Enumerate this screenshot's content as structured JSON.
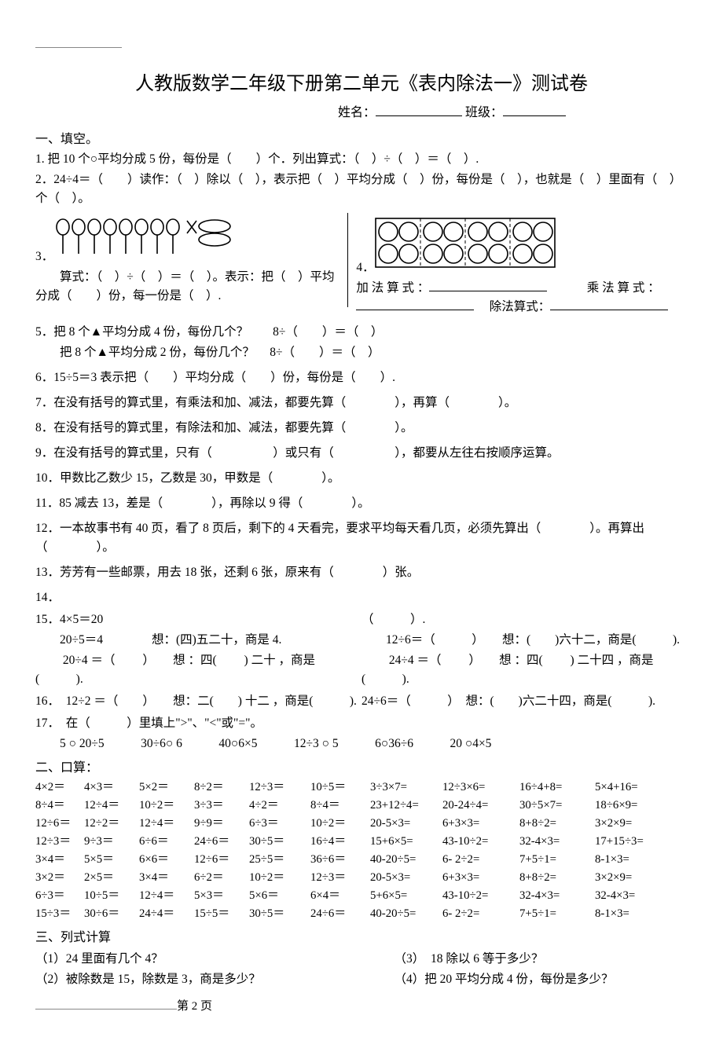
{
  "title": "人教版数学二年级下册第二单元《表内除法一》测试卷",
  "name_label": "姓名：",
  "class_label": "班级：",
  "section1": "一、填空。",
  "q1": "1. 把 10 个○平均分成 5 份，每份是（　　）个．列出算式：（　）÷（　）＝（　）.",
  "q2": "2．24÷4＝（　　）读作：（　）除以（　），表示把（　）平均分成（　）份，每份是（　），也就是（　）里面有（　）个（　）。",
  "q3_num": "3．",
  "q3_line": "　　算式：（　）÷（　）＝（　）。表示：把（　）平均分成（　　）份，每一份是（　）.",
  "q4_num": "4．",
  "q4_add": "加 法 算 式 ：",
  "q4_mul": "乘 法 算 式 ：",
  "q4_div": "除法算式：",
  "q5a": "5．把 8 个▲平均分成 4 份，每份几个？　　8÷（　　）＝（　）",
  "q5b": "　　把 8 个▲平均分成 2 份，每份几个？　 8÷（　　）＝（　）",
  "q6": "6．15÷5＝3 表示把（　　）平均分成（　　）份，每份是（　　）.",
  "q7": "7．在没有括号的算式里，有乘法和加、减法，都要先算（　　　　），再算（　　　　）。",
  "q8": "8．在没有括号的算式里，有除法和加、减法，都要先算（　　　　）。",
  "q9": "9．在没有括号的算式里，只有（　　　　　）或只有（　　　　　），都要从左往右按顺序运算。",
  "q10": "10．甲数比乙数少 15，乙数是 30，甲数是（　　　　）。",
  "q11": "11．85 减去 13，差是（　　　　），再除以 9 得（　　　　）。",
  "q12": "12．一本故事书有 40 页，看了 8 页后，剩下的 4 天看完，要求平均每天看几页，必须先算出（　　　　）。再算出（　　　　）。",
  "q13": "13．芳芳有一些邮票，用去 18 张，还剩 6 张，原来有（　　　　）张。",
  "q14": "14．",
  "q15a": "15．4×5＝20",
  "q15b": "　　20÷5＝4　　　　想：(四)五二十，商是 4.",
  "q15c": "　　 20÷4 ＝（ 　　）　　想 ：四(　　 ) 二十 ，商是(　　　).",
  "q15r1": "（　　　）.",
  "q15r2": "　　12÷6＝（　　　）　　想：(　　)六十二，商是(　　　).",
  "q15r3": "　　 24÷4 ＝（ 　　）　　想 ：四(　　 ) 二十四 ，商是(　　　).",
  "q16": "16．　12÷2 ＝（　　）　　想：二(　　) 十二 ，商是(　　　).",
  "q16r": "24÷6＝（　　　）　想：(　　)六二十四，商是(　　　).",
  "q17": "17．　在（　　　）里填上\">\"、\"<\"或\"=\"。",
  "q17line": "　　5 ○ 20÷5　　　30÷6○ 6　　　40○6×5　　　12÷3 ○ 5　　　6○36÷6　　　20 ○4×5",
  "section2": "二、口算：",
  "calc": [
    [
      "4×2＝",
      "4×3＝",
      "5×2＝",
      "8÷2＝",
      "12÷3＝",
      "10÷5＝",
      "3÷3×7=",
      "12÷3×6=",
      "16÷4+8=",
      "5×4+16="
    ],
    [
      "8÷4＝",
      "12÷4＝",
      "10÷2＝",
      "3÷3＝",
      "4÷2＝",
      "8÷4＝",
      "23+12÷4=",
      "20-24÷4=",
      "30÷5×7=",
      "18÷6×9="
    ],
    [
      "12÷6＝",
      "12÷2＝",
      "12÷4＝",
      "9÷9＝",
      "6÷3＝",
      "10÷2＝",
      "20-5×3=",
      "6+3×3=",
      "8+8÷2=",
      "3×2×9="
    ],
    [
      "12÷3＝",
      "9÷3＝",
      "6÷6＝",
      "24÷6＝",
      "30÷5＝",
      "16÷4＝",
      "15+6×5=",
      "43-10÷2=",
      "32-4×3=",
      "17+15÷3="
    ],
    [
      "3×4＝",
      "5×5＝",
      "6×6＝",
      "12÷6＝",
      "25÷5＝",
      "36÷6＝",
      "40-20÷5=",
      "6- 2÷2=",
      "7+5÷1=",
      "8-1×3="
    ],
    [
      "3×2＝",
      "2×5＝",
      "3×4＝",
      "6÷2＝",
      "10÷2＝",
      "12÷3＝",
      "20-5×3=",
      "6+3×3=",
      "8+8÷2=",
      "3×2×9="
    ],
    [
      "6÷3＝",
      "10÷5＝",
      "12÷4＝",
      "5×3＝",
      "5×6＝",
      "6×4＝",
      "5+6×5=",
      "43-10÷2=",
      "32-4×3=",
      "32-4×3="
    ],
    [
      "15÷3＝",
      "30÷6＝",
      "24÷4＝",
      "15÷5＝",
      "30÷5＝",
      "24÷6＝",
      "40-20÷5=",
      "6- 2÷2=",
      "7+5÷1=",
      "8-1×3="
    ]
  ],
  "calc_widths": [
    62,
    70,
    70,
    70,
    78,
    76,
    92,
    98,
    96,
    96
  ],
  "section3": "三、列式计算",
  "s3_1": "（1）24 里面有几个 4？",
  "s3_2": "（2）被除数是 15，除数是 3，商是多少？",
  "s3_3": "（3）　18 除以 6 等于多少？",
  "s3_4": "（4）把 20 平均分成 4 份，每份是多少？",
  "footer": "第 2 页"
}
